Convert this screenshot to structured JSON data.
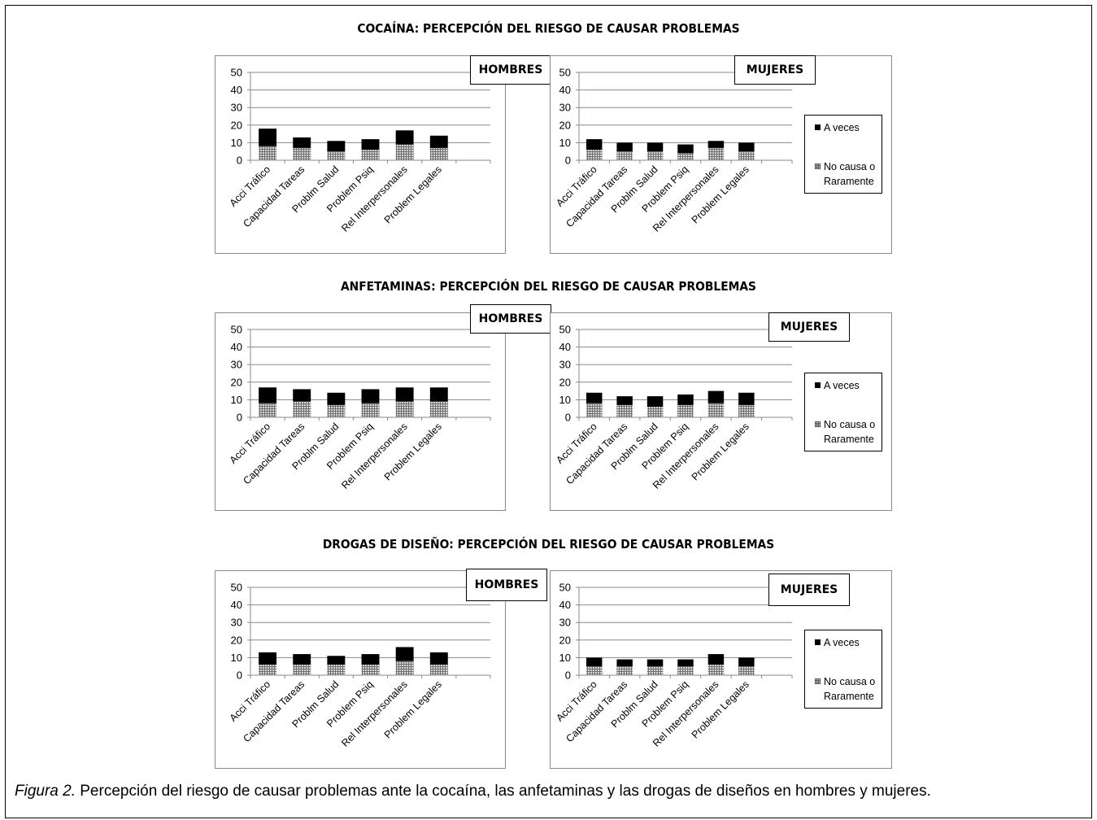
{
  "caption": {
    "figure_label": "Figura 2.",
    "text": " Percepción del riesgo de causar problemas ante la cocaína, las anfetaminas y las drogas de diseños en hombres y mujeres."
  },
  "legend": {
    "a_veces": "A veces",
    "no_causa_line1": "No causa o",
    "no_causa_line2": "Raramente"
  },
  "colors": {
    "a_veces": "#000000",
    "no_causa": "#9a9a9a",
    "grid": "#8a8a8a"
  },
  "rows": [
    {
      "title": "COCAÍNA: PERCEPCIÓN DEL RIESGO DE CAUSAR PROBLEMAS"
    },
    {
      "title": "ANFETAMINAS: PERCEPCIÓN DEL RIESGO DE CAUSAR PROBLEMAS"
    },
    {
      "title": "DROGAS DE DISEÑO: PERCEPCIÓN DEL RIESGO DE CAUSAR PROBLEMAS"
    }
  ],
  "chart_data": [
    {
      "type": "bar",
      "stacked": true,
      "panel": "HOMBRES",
      "row_title": "COCAÍNA: PERCEPCIÓN DEL RIESGO DE CAUSAR PROBLEMAS",
      "categories": [
        "Acci Tráfico",
        "Capacidad Tareas",
        "Problm Salud",
        "Problem Psiq",
        "Rel Interpersonales",
        "Problem Legales"
      ],
      "series": [
        {
          "name": "No causa o Raramente",
          "values": [
            8,
            7,
            5,
            6,
            9,
            7
          ]
        },
        {
          "name": "A veces",
          "values": [
            10,
            6,
            6,
            6,
            8,
            7
          ]
        }
      ],
      "ylim": [
        0,
        50
      ],
      "yticks": [
        0,
        10,
        20,
        30,
        40,
        50
      ],
      "grid": true,
      "legend": "none"
    },
    {
      "type": "bar",
      "stacked": true,
      "panel": "MUJERES",
      "row_title": "COCAÍNA: PERCEPCIÓN DEL RIESGO DE CAUSAR PROBLEMAS",
      "categories": [
        "Acci Tráfico",
        "Capacidad Tareas",
        "Problm Salud",
        "Problem Psiq",
        "Rel Interpersonales",
        "Problem Legales"
      ],
      "series": [
        {
          "name": "No causa o Raramente",
          "values": [
            6,
            5,
            5,
            4,
            7,
            5
          ]
        },
        {
          "name": "A veces",
          "values": [
            6,
            5,
            5,
            5,
            4,
            5
          ]
        }
      ],
      "ylim": [
        0,
        50
      ],
      "yticks": [
        0,
        10,
        20,
        30,
        40,
        50
      ],
      "grid": true,
      "legend": "right"
    },
    {
      "type": "bar",
      "stacked": true,
      "panel": "HOMBRES",
      "row_title": "ANFETAMINAS: PERCEPCIÓN DEL RIESGO DE CAUSAR PROBLEMAS",
      "categories": [
        "Acci Tráfico",
        "Capacidad Tareas",
        "Problm Salud",
        "Problem Psiq",
        "Rel Interpersonales",
        "Problem Legales"
      ],
      "series": [
        {
          "name": "No causa o Raramente",
          "values": [
            8,
            9,
            7,
            8,
            9,
            9
          ]
        },
        {
          "name": "A veces",
          "values": [
            9,
            7,
            7,
            8,
            8,
            8
          ]
        }
      ],
      "ylim": [
        0,
        50
      ],
      "yticks": [
        0,
        10,
        20,
        30,
        40,
        50
      ],
      "grid": true,
      "legend": "none"
    },
    {
      "type": "bar",
      "stacked": true,
      "panel": "MUJERES",
      "row_title": "ANFETAMINAS: PERCEPCIÓN DEL RIESGO DE CAUSAR PROBLEMAS",
      "categories": [
        "Acci Tráfico",
        "Capacidad Tareas",
        "Problm Salud",
        "Problem Psiq",
        "Rel Interpersonales",
        "Problem Legales"
      ],
      "series": [
        {
          "name": "No causa o Raramente",
          "values": [
            8,
            7,
            6,
            7,
            8,
            7
          ]
        },
        {
          "name": "A veces",
          "values": [
            6,
            5,
            6,
            6,
            7,
            7
          ]
        }
      ],
      "ylim": [
        0,
        50
      ],
      "yticks": [
        0,
        10,
        20,
        30,
        40,
        50
      ],
      "grid": true,
      "legend": "right"
    },
    {
      "type": "bar",
      "stacked": true,
      "panel": "HOMBRES",
      "row_title": "DROGAS DE DISEÑO: PERCEPCIÓN DEL RIESGO DE CAUSAR PROBLEMAS",
      "categories": [
        "Acci Tráfico",
        "Capacidad Tareas",
        "Problm Salud",
        "Problem Psiq",
        "Rel Interpersonales",
        "Problem Legales"
      ],
      "series": [
        {
          "name": "No causa o Raramente",
          "values": [
            6,
            6,
            6,
            6,
            8,
            6
          ]
        },
        {
          "name": "A veces",
          "values": [
            7,
            6,
            5,
            6,
            8,
            7
          ]
        }
      ],
      "ylim": [
        0,
        50
      ],
      "yticks": [
        0,
        10,
        20,
        30,
        40,
        50
      ],
      "grid": true,
      "legend": "none"
    },
    {
      "type": "bar",
      "stacked": true,
      "panel": "MUJERES",
      "row_title": "DROGAS DE DISEÑO: PERCEPCIÓN DEL RIESGO DE CAUSAR PROBLEMAS",
      "categories": [
        "Acci Tráfico",
        "Capacidad Tareas",
        "Problm Salud",
        "Problem Psiq",
        "Rel Interpersonales",
        "Problem Legales"
      ],
      "series": [
        {
          "name": "No causa o Raramente",
          "values": [
            5,
            5,
            5,
            5,
            6,
            5
          ]
        },
        {
          "name": "A veces",
          "values": [
            5,
            4,
            4,
            4,
            6,
            5
          ]
        }
      ],
      "ylim": [
        0,
        50
      ],
      "yticks": [
        0,
        10,
        20,
        30,
        40,
        50
      ],
      "grid": true,
      "legend": "right"
    }
  ]
}
